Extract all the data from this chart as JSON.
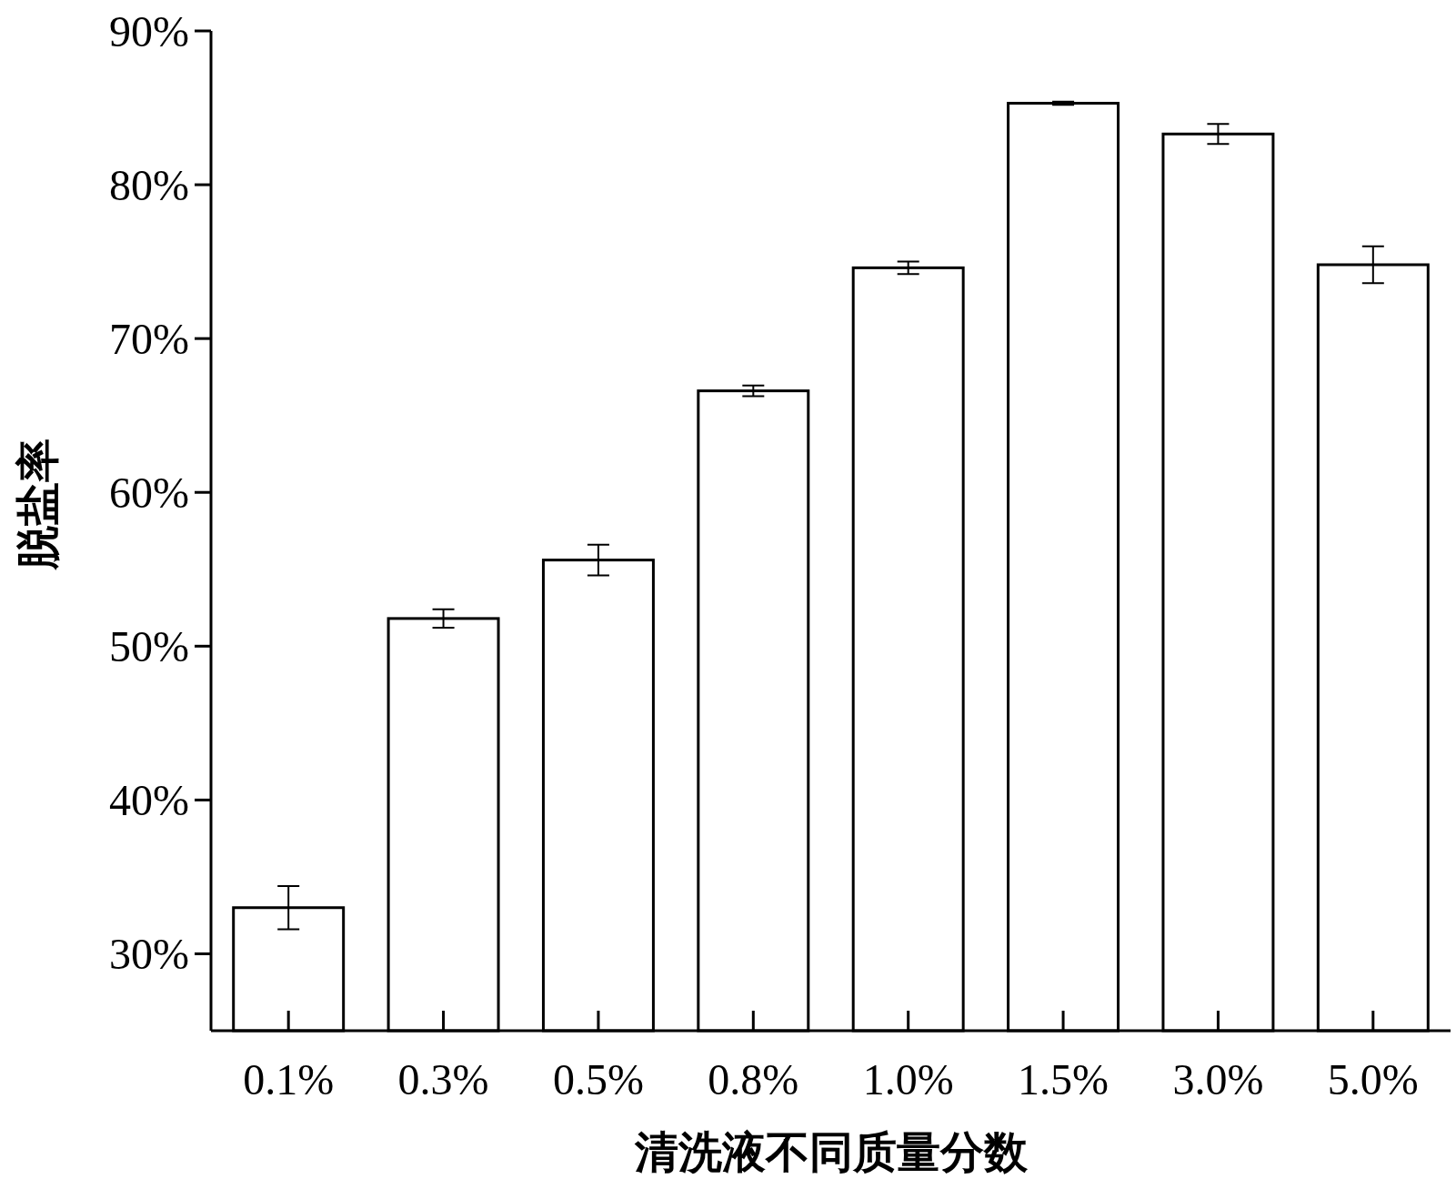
{
  "chart_data": {
    "type": "bar",
    "xlabel": "清洗液不同质量分数",
    "ylabel": "脱盐率",
    "categories": [
      "0.1%",
      "0.3%",
      "0.5%",
      "0.8%",
      "1.0%",
      "1.5%",
      "3.0%",
      "5.0%"
    ],
    "values": [
      33.0,
      51.8,
      55.6,
      66.6,
      74.6,
      85.3,
      83.3,
      74.8
    ],
    "errors": [
      1.4,
      0.6,
      1.0,
      0.35,
      0.4,
      0.1,
      0.65,
      1.2
    ],
    "color": "#ffffff",
    "ylim": [
      25,
      90
    ],
    "yticks": [
      {
        "value": 30,
        "label": "30%"
      },
      {
        "value": 40,
        "label": "40%"
      },
      {
        "value": 50,
        "label": "50%"
      },
      {
        "value": 60,
        "label": "60%"
      },
      {
        "value": 70,
        "label": "70%"
      },
      {
        "value": 80,
        "label": "80%"
      },
      {
        "value": 90,
        "label": "90%"
      }
    ],
    "grid": false
  }
}
